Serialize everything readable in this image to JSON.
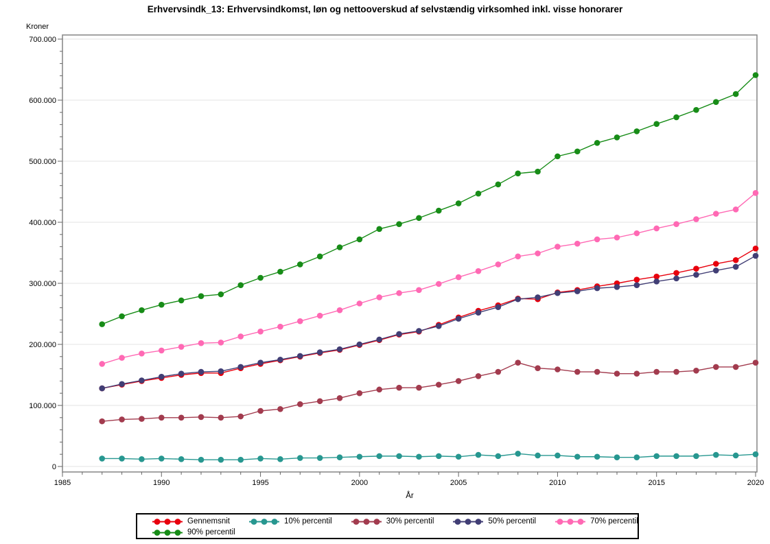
{
  "chart_data": {
    "type": "line",
    "title": "Erhvervsindk_13: Erhvervsindkomst, løn og nettooverskud af selvstændig virksomhed inkl. visse honorarer",
    "ylabel": "Kroner",
    "xlabel": "År",
    "ylim": [
      0,
      700000
    ],
    "xlim": [
      1985,
      2020
    ],
    "grid": "horizontal",
    "legend_position": "bottom",
    "legend_first_row_count": 5,
    "yticks": {
      "values": [
        0,
        100000,
        200000,
        300000,
        400000,
        500000,
        600000,
        700000
      ],
      "labels": [
        "0",
        "100.000",
        "200.000",
        "300.000",
        "400.000",
        "500.000",
        "600.000",
        "700.000"
      ],
      "minor_step": 20000
    },
    "xticks": {
      "values": [
        1985,
        1990,
        1995,
        2000,
        2005,
        2010,
        2015,
        2020
      ],
      "labels": [
        "1985",
        "1990",
        "1995",
        "2000",
        "2005",
        "2010",
        "2015",
        "2020"
      ],
      "minor_step": 1
    },
    "x": [
      1987,
      1988,
      1989,
      1990,
      1991,
      1992,
      1993,
      1994,
      1995,
      1996,
      1997,
      1998,
      1999,
      2000,
      2001,
      2002,
      2003,
      2004,
      2005,
      2006,
      2007,
      2008,
      2009,
      2010,
      2011,
      2012,
      2013,
      2014,
      2015,
      2016,
      2017,
      2018,
      2019,
      2020
    ],
    "series": [
      {
        "name": "Gennemsnit",
        "color": "#e8000d",
        "values": [
          128000,
          134000,
          140000,
          145000,
          150000,
          153000,
          153000,
          161000,
          168000,
          174000,
          180000,
          186000,
          191000,
          199000,
          207000,
          216000,
          221000,
          232000,
          244000,
          255000,
          264000,
          275000,
          274000,
          285000,
          289000,
          295000,
          300000,
          306000,
          311000,
          317000,
          324000,
          332000,
          338000,
          357000
        ]
      },
      {
        "name": "10% percentil",
        "color": "#279790",
        "values": [
          13000,
          13000,
          12000,
          13000,
          12000,
          11000,
          11000,
          11000,
          13000,
          12000,
          14000,
          14000,
          15000,
          16000,
          17000,
          17000,
          16000,
          17000,
          16000,
          19000,
          17000,
          21000,
          18000,
          18000,
          16000,
          16000,
          15000,
          15000,
          17000,
          17000,
          17000,
          19000,
          18000,
          20000
        ]
      },
      {
        "name": "30% percentil",
        "color": "#a23b4e",
        "values": [
          74000,
          77000,
          78000,
          80000,
          80000,
          81000,
          80000,
          82000,
          91000,
          94000,
          102000,
          107000,
          112000,
          120000,
          126000,
          129000,
          129000,
          134000,
          140000,
          148000,
          155000,
          170000,
          161000,
          159000,
          155000,
          155000,
          152000,
          152000,
          155000,
          155000,
          157000,
          163000,
          163000,
          170000
        ]
      },
      {
        "name": "50% percentil",
        "color": "#413e75",
        "values": [
          128000,
          135000,
          141000,
          147000,
          152000,
          155000,
          156000,
          163000,
          170000,
          175000,
          181000,
          187000,
          192000,
          200000,
          208000,
          217000,
          222000,
          230000,
          242000,
          252000,
          261000,
          274000,
          277000,
          284000,
          287000,
          292000,
          294000,
          297000,
          303000,
          308000,
          314000,
          321000,
          327000,
          345000
        ]
      },
      {
        "name": "70% percentil",
        "color": "#ff69b4",
        "values": [
          168000,
          178000,
          185000,
          190000,
          196000,
          202000,
          203000,
          213000,
          221000,
          229000,
          238000,
          247000,
          256000,
          267000,
          277000,
          284000,
          289000,
          299000,
          310000,
          320000,
          331000,
          344000,
          349000,
          360000,
          365000,
          372000,
          375000,
          382000,
          390000,
          397000,
          405000,
          414000,
          421000,
          448000
        ]
      },
      {
        "name": "90% percentil",
        "color": "#178c17",
        "values": [
          233000,
          246000,
          256000,
          265000,
          272000,
          279000,
          282000,
          297000,
          309000,
          319000,
          331000,
          344000,
          359000,
          372000,
          389000,
          397000,
          407000,
          419000,
          431000,
          447000,
          462000,
          480000,
          483000,
          508000,
          516000,
          530000,
          539000,
          549000,
          561000,
          572000,
          584000,
          597000,
          610000,
          641000
        ]
      }
    ]
  }
}
